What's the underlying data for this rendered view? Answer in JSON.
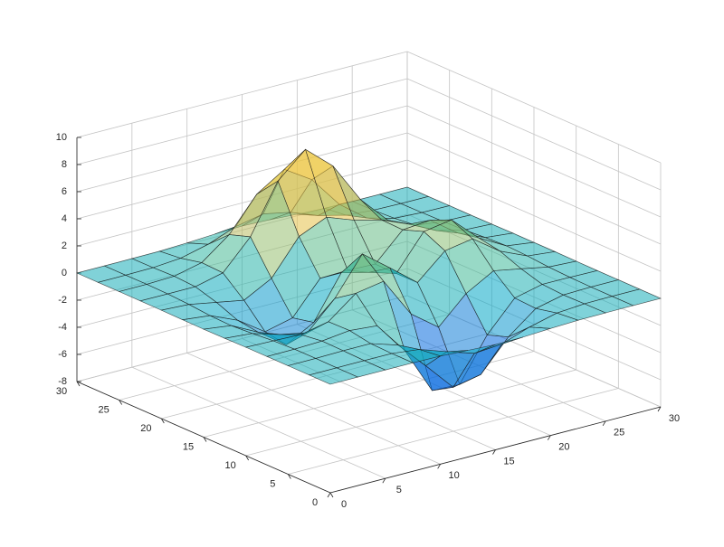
{
  "chart_data": {
    "type": "surface",
    "x": [
      0,
      2.5,
      5,
      7.5,
      10,
      12.5,
      15,
      17.5,
      20,
      22.5,
      25,
      27.5,
      30
    ],
    "y": [
      0,
      2.5,
      5,
      7.5,
      10,
      12.5,
      15,
      17.5,
      20,
      22.5,
      25,
      27.5,
      30
    ],
    "z": [
      [
        0,
        0,
        0,
        0,
        -0.03,
        -0.14,
        -0.24,
        -0.22,
        -0.11,
        -0.03,
        -0.01,
        0,
        0
      ],
      [
        0,
        0,
        0.01,
        0,
        -0.23,
        -0.92,
        -1.57,
        -1.41,
        -0.69,
        -0.18,
        -0.03,
        0,
        0
      ],
      [
        0,
        0.01,
        0.05,
        0.05,
        -0.59,
        -2.64,
        -4.75,
        -4.34,
        -2.1,
        -0.53,
        -0.06,
        0,
        0
      ],
      [
        0,
        0.01,
        0.08,
        0.33,
        0.15,
        -2.19,
        -5.68,
        -5.76,
        -2.63,
        -0.44,
        0.04,
        0.03,
        0
      ],
      [
        -0.01,
        -0.06,
        -0.13,
        0.3,
        1.86,
        2.22,
        -0.72,
        -2.22,
        -0.27,
        0.88,
        0.5,
        0.11,
        0.01
      ],
      [
        -0.03,
        -0.2,
        -0.8,
        -1.21,
        0.8,
        3.55,
        2,
        0.39,
        2.2,
        2.56,
        1.12,
        0.24,
        0.03
      ],
      [
        -0.04,
        -0.3,
        -1.33,
        -2.77,
        -1.65,
        1.48,
        0.98,
        0.37,
        2.94,
        3.27,
        1.41,
        0.3,
        0.03
      ],
      [
        -0.03,
        -0.25,
        -1.12,
        -2.49,
        -2,
        0.39,
        0.46,
        0.38,
        2.38,
        2.56,
        1.09,
        0.23,
        0.03
      ],
      [
        -0.01,
        -0.11,
        -0.48,
        -0.86,
        0.23,
        2.79,
        3.69,
        2.94,
        2.43,
        1.58,
        0.58,
        0.11,
        0.01
      ],
      [
        0,
        -0.02,
        -0.01,
        0.48,
        2.61,
        6.2,
        8,
        6.25,
        3.25,
        1.19,
        0.29,
        0.05,
        0
      ],
      [
        0,
        0.01,
        0.08,
        0.55,
        2.09,
        4.55,
        5.85,
        4.56,
        2.21,
        0.68,
        0.13,
        0.02,
        0
      ],
      [
        0,
        0,
        0.03,
        0.19,
        0.69,
        1.47,
        1.88,
        1.47,
        0.7,
        0.2,
        0.04,
        0,
        0
      ],
      [
        0,
        0,
        0.01,
        0.03,
        0.11,
        0.23,
        0.3,
        0.23,
        0.11,
        0.03,
        0.01,
        0,
        0
      ]
    ],
    "xlim": [
      0,
      30
    ],
    "ylim": [
      0,
      30
    ],
    "zlim": [
      -8,
      10
    ],
    "xticks": [
      0,
      5,
      10,
      15,
      20,
      25,
      30
    ],
    "yticks": [
      0,
      5,
      10,
      15,
      20,
      25,
      30
    ],
    "zticks": [
      -8,
      -6,
      -4,
      -2,
      0,
      2,
      4,
      6,
      8,
      10
    ],
    "grid": true
  }
}
